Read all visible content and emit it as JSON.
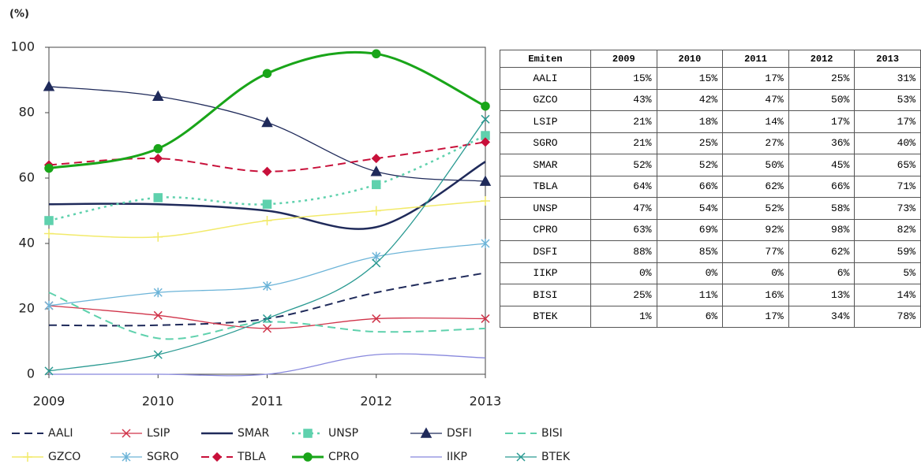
{
  "chart_data": {
    "type": "line",
    "y_label": "(%)",
    "categories": [
      "2009",
      "2010",
      "2011",
      "2012",
      "2013"
    ],
    "ylim": [
      0,
      100
    ],
    "yticks": [
      0,
      20,
      40,
      60,
      80,
      100
    ],
    "smooth": true,
    "series": [
      {
        "name": "AALI",
        "color": "#1f2a5a",
        "dash": "10,6",
        "width": 2,
        "marker": "none",
        "values": [
          15,
          15,
          17,
          25,
          31
        ]
      },
      {
        "name": "LSIP",
        "color": "#d0344a",
        "dash": "",
        "width": 1.3,
        "marker": "x",
        "values": [
          21,
          18,
          14,
          17,
          17
        ]
      },
      {
        "name": "SMAR",
        "color": "#1f2a5a",
        "dash": "",
        "width": 2.5,
        "marker": "none",
        "values": [
          52,
          52,
          50,
          45,
          65
        ]
      },
      {
        "name": "UNSP",
        "color": "#5fd1ad",
        "dash": "3,5",
        "width": 2.5,
        "marker": "square",
        "values": [
          47,
          54,
          52,
          58,
          73
        ]
      },
      {
        "name": "DSFI",
        "color": "#1f2a5a",
        "dash": "",
        "width": 1.3,
        "marker": "triangle",
        "values": [
          88,
          85,
          77,
          62,
          59
        ]
      },
      {
        "name": "BISI",
        "color": "#5fd1ad",
        "dash": "10,6",
        "width": 2,
        "marker": "none",
        "values": [
          25,
          11,
          16,
          13,
          14
        ]
      },
      {
        "name": "GZCO",
        "color": "#f2ea6a",
        "dash": "",
        "width": 1.5,
        "marker": "plus",
        "values": [
          43,
          42,
          47,
          50,
          53
        ]
      },
      {
        "name": "SGRO",
        "color": "#6cb4d8",
        "dash": "",
        "width": 1.3,
        "marker": "star",
        "values": [
          21,
          25,
          27,
          36,
          40
        ]
      },
      {
        "name": "TBLA",
        "color": "#c8103a",
        "dash": "10,6",
        "width": 2,
        "marker": "diamond",
        "values": [
          64,
          66,
          62,
          66,
          71
        ]
      },
      {
        "name": "CPRO",
        "color": "#19a519",
        "dash": "",
        "width": 3,
        "marker": "circle",
        "values": [
          63,
          69,
          92,
          98,
          82
        ]
      },
      {
        "name": "IIKP",
        "color": "#8888dd",
        "dash": "",
        "width": 1.3,
        "marker": "none",
        "values": [
          0,
          0,
          0,
          6,
          5
        ]
      },
      {
        "name": "BTEK",
        "color": "#2a9a92",
        "dash": "",
        "width": 1.3,
        "marker": "x",
        "values": [
          1,
          6,
          17,
          34,
          78
        ]
      }
    ]
  },
  "table": {
    "header": [
      "Emiten",
      "2009",
      "2010",
      "2011",
      "2012",
      "2013"
    ],
    "rows": [
      [
        "AALI",
        "15%",
        "15%",
        "17%",
        "25%",
        "31%"
      ],
      [
        "GZCO",
        "43%",
        "42%",
        "47%",
        "50%",
        "53%"
      ],
      [
        "LSIP",
        "21%",
        "18%",
        "14%",
        "17%",
        "17%"
      ],
      [
        "SGRO",
        "21%",
        "25%",
        "27%",
        "36%",
        "40%"
      ],
      [
        "SMAR",
        "52%",
        "52%",
        "50%",
        "45%",
        "65%"
      ],
      [
        "TBLA",
        "64%",
        "66%",
        "62%",
        "66%",
        "71%"
      ],
      [
        "UNSP",
        "47%",
        "54%",
        "52%",
        "58%",
        "73%"
      ],
      [
        "CPRO",
        "63%",
        "69%",
        "92%",
        "98%",
        "82%"
      ],
      [
        "DSFI",
        "88%",
        "85%",
        "77%",
        "62%",
        "59%"
      ],
      [
        "IIKP",
        "0%",
        "0%",
        "0%",
        "6%",
        "5%"
      ],
      [
        "BISI",
        "25%",
        "11%",
        "16%",
        "13%",
        "14%"
      ],
      [
        "BTEK",
        "1%",
        "6%",
        "17%",
        "34%",
        "78%"
      ]
    ]
  }
}
